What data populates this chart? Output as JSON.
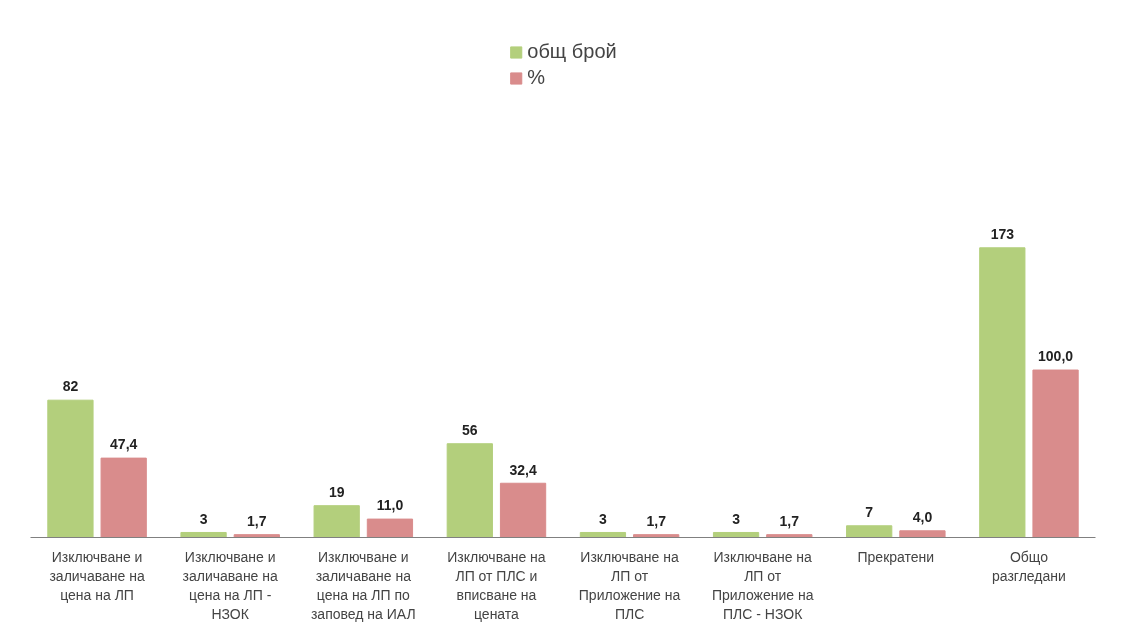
{
  "chart_data": {
    "type": "bar",
    "categories": [
      "Изключване и заличаване на цена на ЛП",
      "Изключване и заличаване на цена на ЛП - НЗОК",
      "Изключване и заличаване на цена на ЛП по заповед на ИАЛ",
      "Изключване на ЛП от ПЛС и вписване на цената",
      "Изключване на ЛП от Приложение на ПЛС",
      "Изключване на ЛП от Приложение на ПЛС - НЗОК",
      "Прекратени",
      "Общо разгледани"
    ],
    "series": [
      {
        "name": "общ брой",
        "color": "#b3cf7c",
        "values": [
          82,
          3,
          19,
          56,
          3,
          3,
          7,
          173
        ],
        "value_labels": [
          "82",
          "3",
          "19",
          "56",
          "3",
          "3",
          "7",
          "173"
        ]
      },
      {
        "name": "%",
        "color": "#d98c8c",
        "values": [
          47.4,
          1.7,
          11.0,
          32.4,
          1.7,
          1.7,
          4.0,
          100.0
        ],
        "value_labels": [
          "47,4",
          "1,7",
          "11,0",
          "32,4",
          "1,7",
          "1,7",
          "4,0",
          "100,0"
        ]
      }
    ],
    "legend": "top",
    "grid": false
  }
}
